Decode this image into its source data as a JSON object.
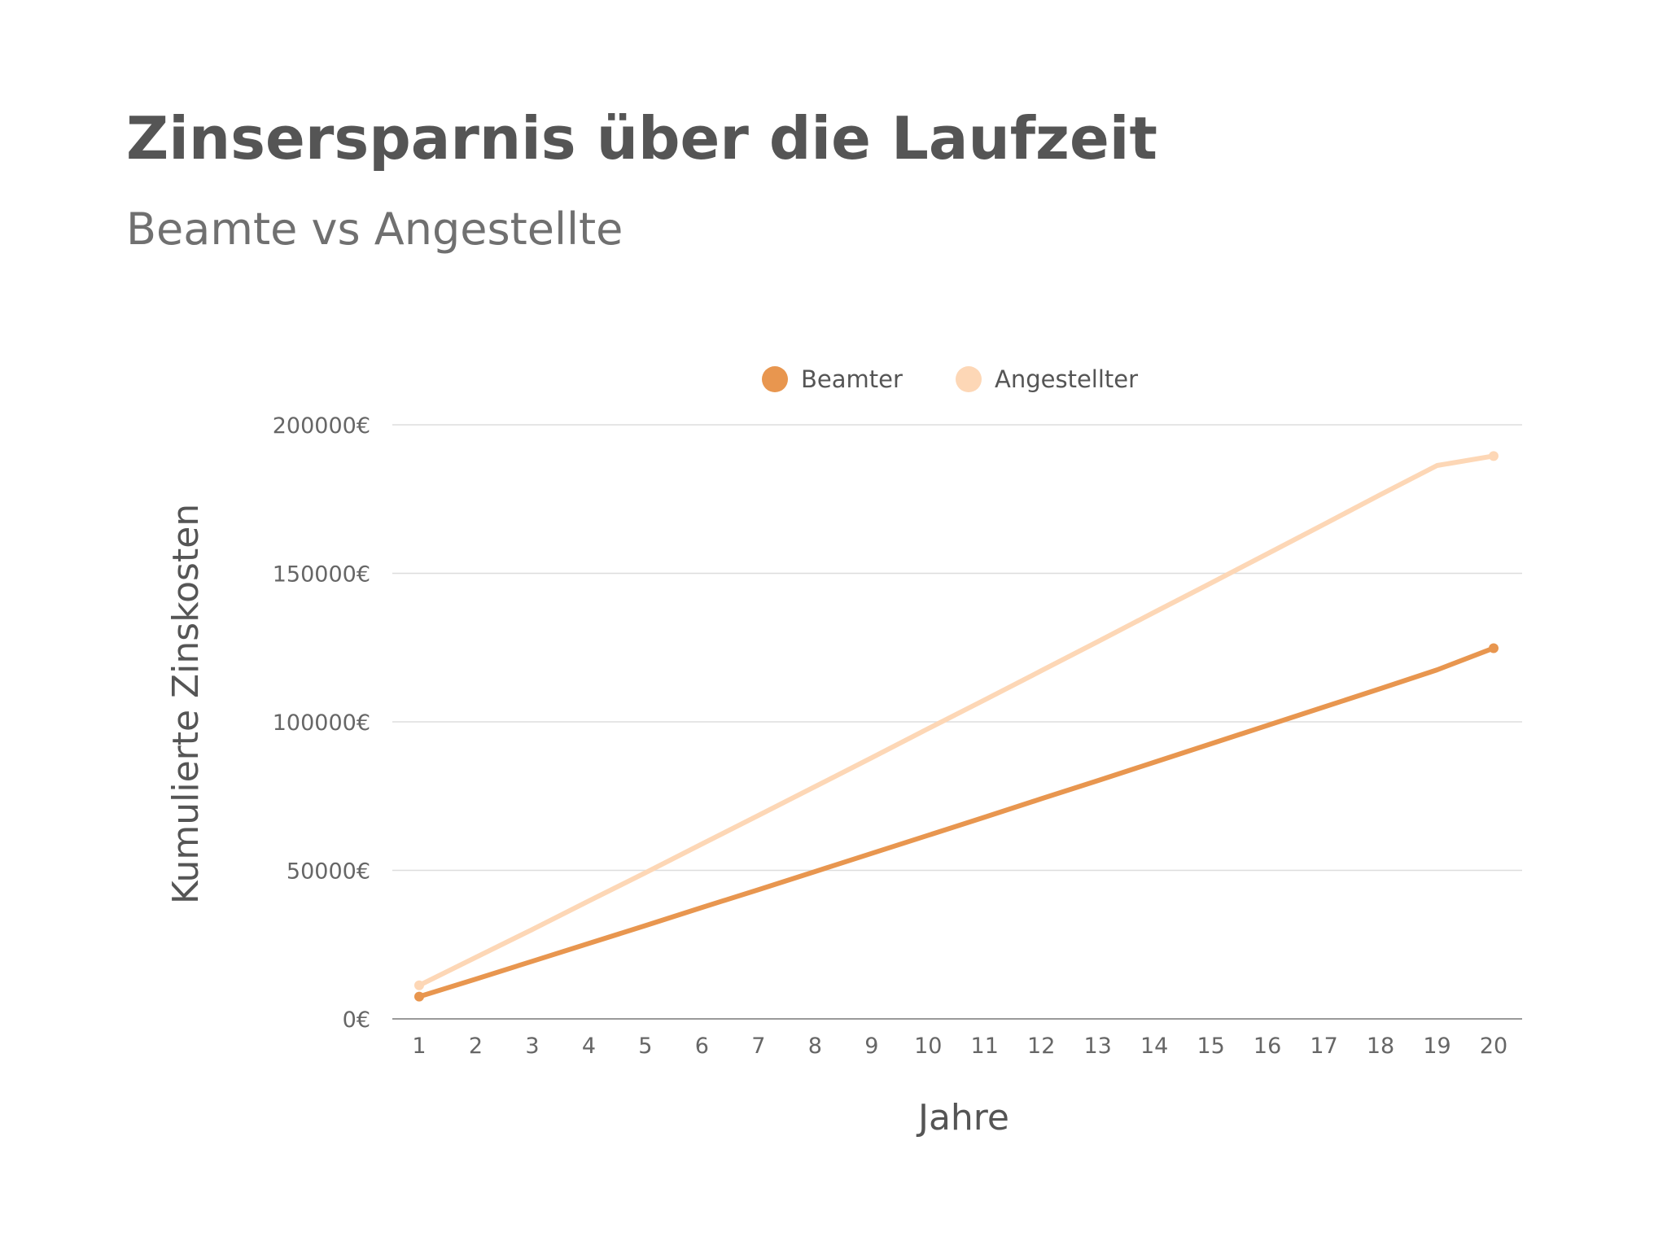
{
  "title": "Zinsersparnis über die Laufzeit",
  "subtitle": "Beamte vs Angestellte",
  "chart_data": {
    "type": "line",
    "title": "Zinsersparnis über die Laufzeit",
    "subtitle": "Beamte vs Angestellte",
    "xlabel": "Jahre",
    "ylabel": "Kumulierte Zinskosten",
    "x": [
      1,
      2,
      3,
      4,
      5,
      6,
      7,
      8,
      9,
      10,
      11,
      12,
      13,
      14,
      15,
      16,
      17,
      18,
      19,
      20
    ],
    "x_tick_labels": [
      "1",
      "2",
      "3",
      "4",
      "5",
      "6",
      "7",
      "8",
      "9",
      "10",
      "11",
      "12",
      "13",
      "14",
      "15",
      "16",
      "17",
      "18",
      "19",
      "20"
    ],
    "ylim": [
      0,
      200000
    ],
    "y_ticks": [
      0,
      50000,
      100000,
      150000,
      200000
    ],
    "y_tick_labels": [
      "0€",
      "50000€",
      "100000€",
      "150000€",
      "200000€"
    ],
    "grid": true,
    "legend_position": "top-center",
    "series": [
      {
        "name": "Beamter",
        "color": "#E8964F",
        "values": [
          7500,
          13400,
          19400,
          25400,
          31400,
          37500,
          43500,
          49600,
          55700,
          61800,
          67900,
          74100,
          80200,
          86400,
          92600,
          98800,
          105000,
          111200,
          117500,
          124800
        ]
      },
      {
        "name": "Angestellter",
        "color": "#FDD7B6",
        "values": [
          11300,
          20700,
          30100,
          39700,
          49200,
          58900,
          68500,
          78200,
          87900,
          97700,
          107400,
          117200,
          127000,
          136900,
          146700,
          156600,
          166500,
          176500,
          186300,
          189500
        ]
      }
    ]
  }
}
